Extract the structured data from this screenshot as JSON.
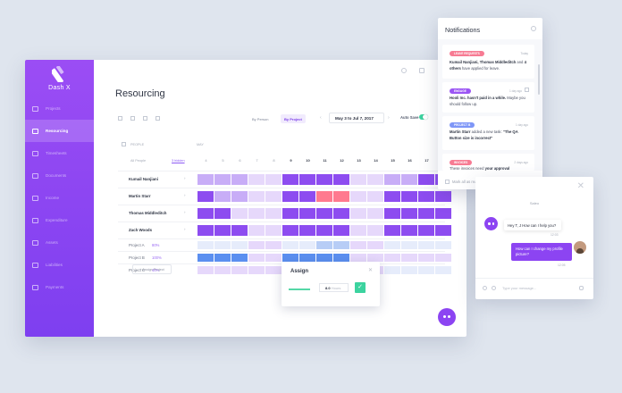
{
  "app": {
    "brand": "Dash X",
    "page_title": "Resourcing"
  },
  "sidebar": {
    "items": [
      {
        "label": "Projects",
        "icon": "folder-icon",
        "active": false
      },
      {
        "label": "Resourcing",
        "icon": "user-icon",
        "active": true
      },
      {
        "label": "Timesheets",
        "icon": "timesheet-icon",
        "active": false
      },
      {
        "label": "Documents",
        "icon": "document-icon",
        "active": false
      },
      {
        "label": "Income",
        "icon": "income-icon",
        "active": false
      },
      {
        "label": "Expenditure",
        "icon": "expenditure-icon",
        "active": false
      },
      {
        "label": "Assets",
        "icon": "assets-icon",
        "active": false
      },
      {
        "label": "Liabilities",
        "icon": "liabilities-icon",
        "active": false
      },
      {
        "label": "Payments",
        "icon": "payments-icon",
        "active": false
      }
    ]
  },
  "toolbar": {
    "by_person": "By Person",
    "by_project": "By Project",
    "date_range": "May 3 to Jul 7, 2017",
    "auto_save": "Auto Save",
    "auto_save_on": true
  },
  "grid": {
    "people_header": "PEOPLE",
    "month": "MAY",
    "all_people": "All People",
    "hidden_link": "3 hidden",
    "days": [
      "4",
      "5",
      "6",
      "7",
      "8",
      "9",
      "10",
      "11",
      "12",
      "13",
      "14",
      "15",
      "16",
      "17",
      "18"
    ],
    "bold_days": [
      "9",
      "10",
      "11",
      "12",
      "13",
      "14",
      "15",
      "16",
      "17",
      "18"
    ],
    "rows": [
      {
        "name": "Kumail Nanjiani",
        "type": "person",
        "pct": ""
      },
      {
        "name": "Martin Starr",
        "type": "person",
        "pct": ""
      },
      {
        "name": "Thomas Middleditch",
        "type": "person",
        "pct": ""
      },
      {
        "name": "Zach Woods",
        "type": "person",
        "pct": ""
      },
      {
        "name": "Project A",
        "type": "project",
        "pct": "80%"
      },
      {
        "name": "Project B",
        "type": "project",
        "pct": "100%"
      },
      {
        "name": "Project C",
        "type": "project",
        "pct": "40%"
      }
    ],
    "add_project": "+ Assign Project"
  },
  "assign": {
    "title": "Assign",
    "hours_value": "8.0",
    "hours_unit": "Hours"
  },
  "notifications": {
    "title": "Notifications",
    "mark_all": "Mark all as read",
    "items": [
      {
        "tag": "LEAVE REQUESTS",
        "tag_color": "#f77b93",
        "time": "Today",
        "html": "<b>Kumail Nanjiani, Thomas Middleditch</b> and <b>4 others</b> have applied for leave."
      },
      {
        "tag": "ENGAGE",
        "tag_color": "#9b55f4",
        "time": "1 day ago",
        "html": "<b>Hooli Inc. hasn't paid in a while.</b> Maybe you should follow up."
      },
      {
        "tag": "PROJECT B",
        "tag_color": "#7e96f7",
        "time": "1 day ago",
        "html": "<b>Martin Starr</b> added a new task: <b>\"The QA Button size is incorrect\"</b>"
      },
      {
        "tag": "INVOICES",
        "tag_color": "#f77b93",
        "time": "2 days ago",
        "html": "These invoices need <b>your approval</b>"
      }
    ]
  },
  "chat": {
    "name": "Saleo",
    "incoming": "Hey T, J How can I help you?",
    "incoming_time": "12:03",
    "outgoing": "How can I change my profile picture?",
    "outgoing_time": "12:05",
    "input_placeholder": "Type your message..."
  },
  "colors": {
    "accent": "#8c44f2",
    "success": "#3cd39f",
    "busy": "#ff7a8f"
  }
}
